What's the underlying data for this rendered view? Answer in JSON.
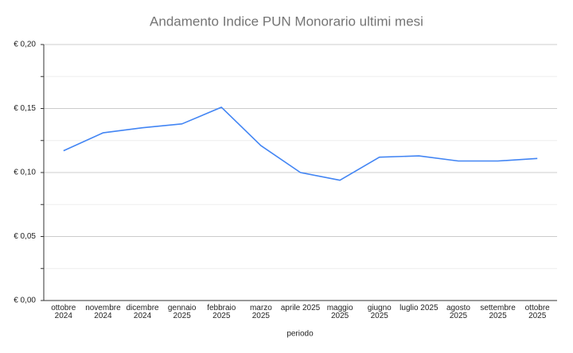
{
  "chart_data": {
    "type": "line",
    "title": "Andamento Indice PUN Monorario ultimi mesi",
    "x_label": "periodo",
    "categories": [
      "ottobre\n2024",
      "novembre\n2024",
      "dicembre\n2024",
      "gennaio\n2025",
      "febbraio\n2025",
      "marzo\n2025",
      "aprile 2025",
      "maggio\n2025",
      "giugno\n2025",
      "luglio 2025",
      "agosto\n2025",
      "settembre\n2025",
      "ottobre\n2025"
    ],
    "series": [
      {
        "color": "#4285f4",
        "values": [
          0.117,
          0.131,
          0.135,
          0.138,
          0.151,
          0.121,
          0.1,
          0.094,
          0.112,
          0.113,
          0.109,
          0.109,
          0.111
        ]
      }
    ],
    "ylim": [
      0,
      0.2
    ],
    "yticks": [
      {
        "value": 0,
        "label": "€ 0,00"
      },
      {
        "value": 0.05,
        "label": "€ 0,05"
      },
      {
        "value": 0.1,
        "label": "€ 0,10"
      },
      {
        "value": 0.15,
        "label": "€ 0,15"
      },
      {
        "value": 0.2,
        "label": "€ 0,20"
      }
    ],
    "minor_yticks": [
      0.025,
      0.075,
      0.125,
      0.175
    ],
    "grid": true
  }
}
